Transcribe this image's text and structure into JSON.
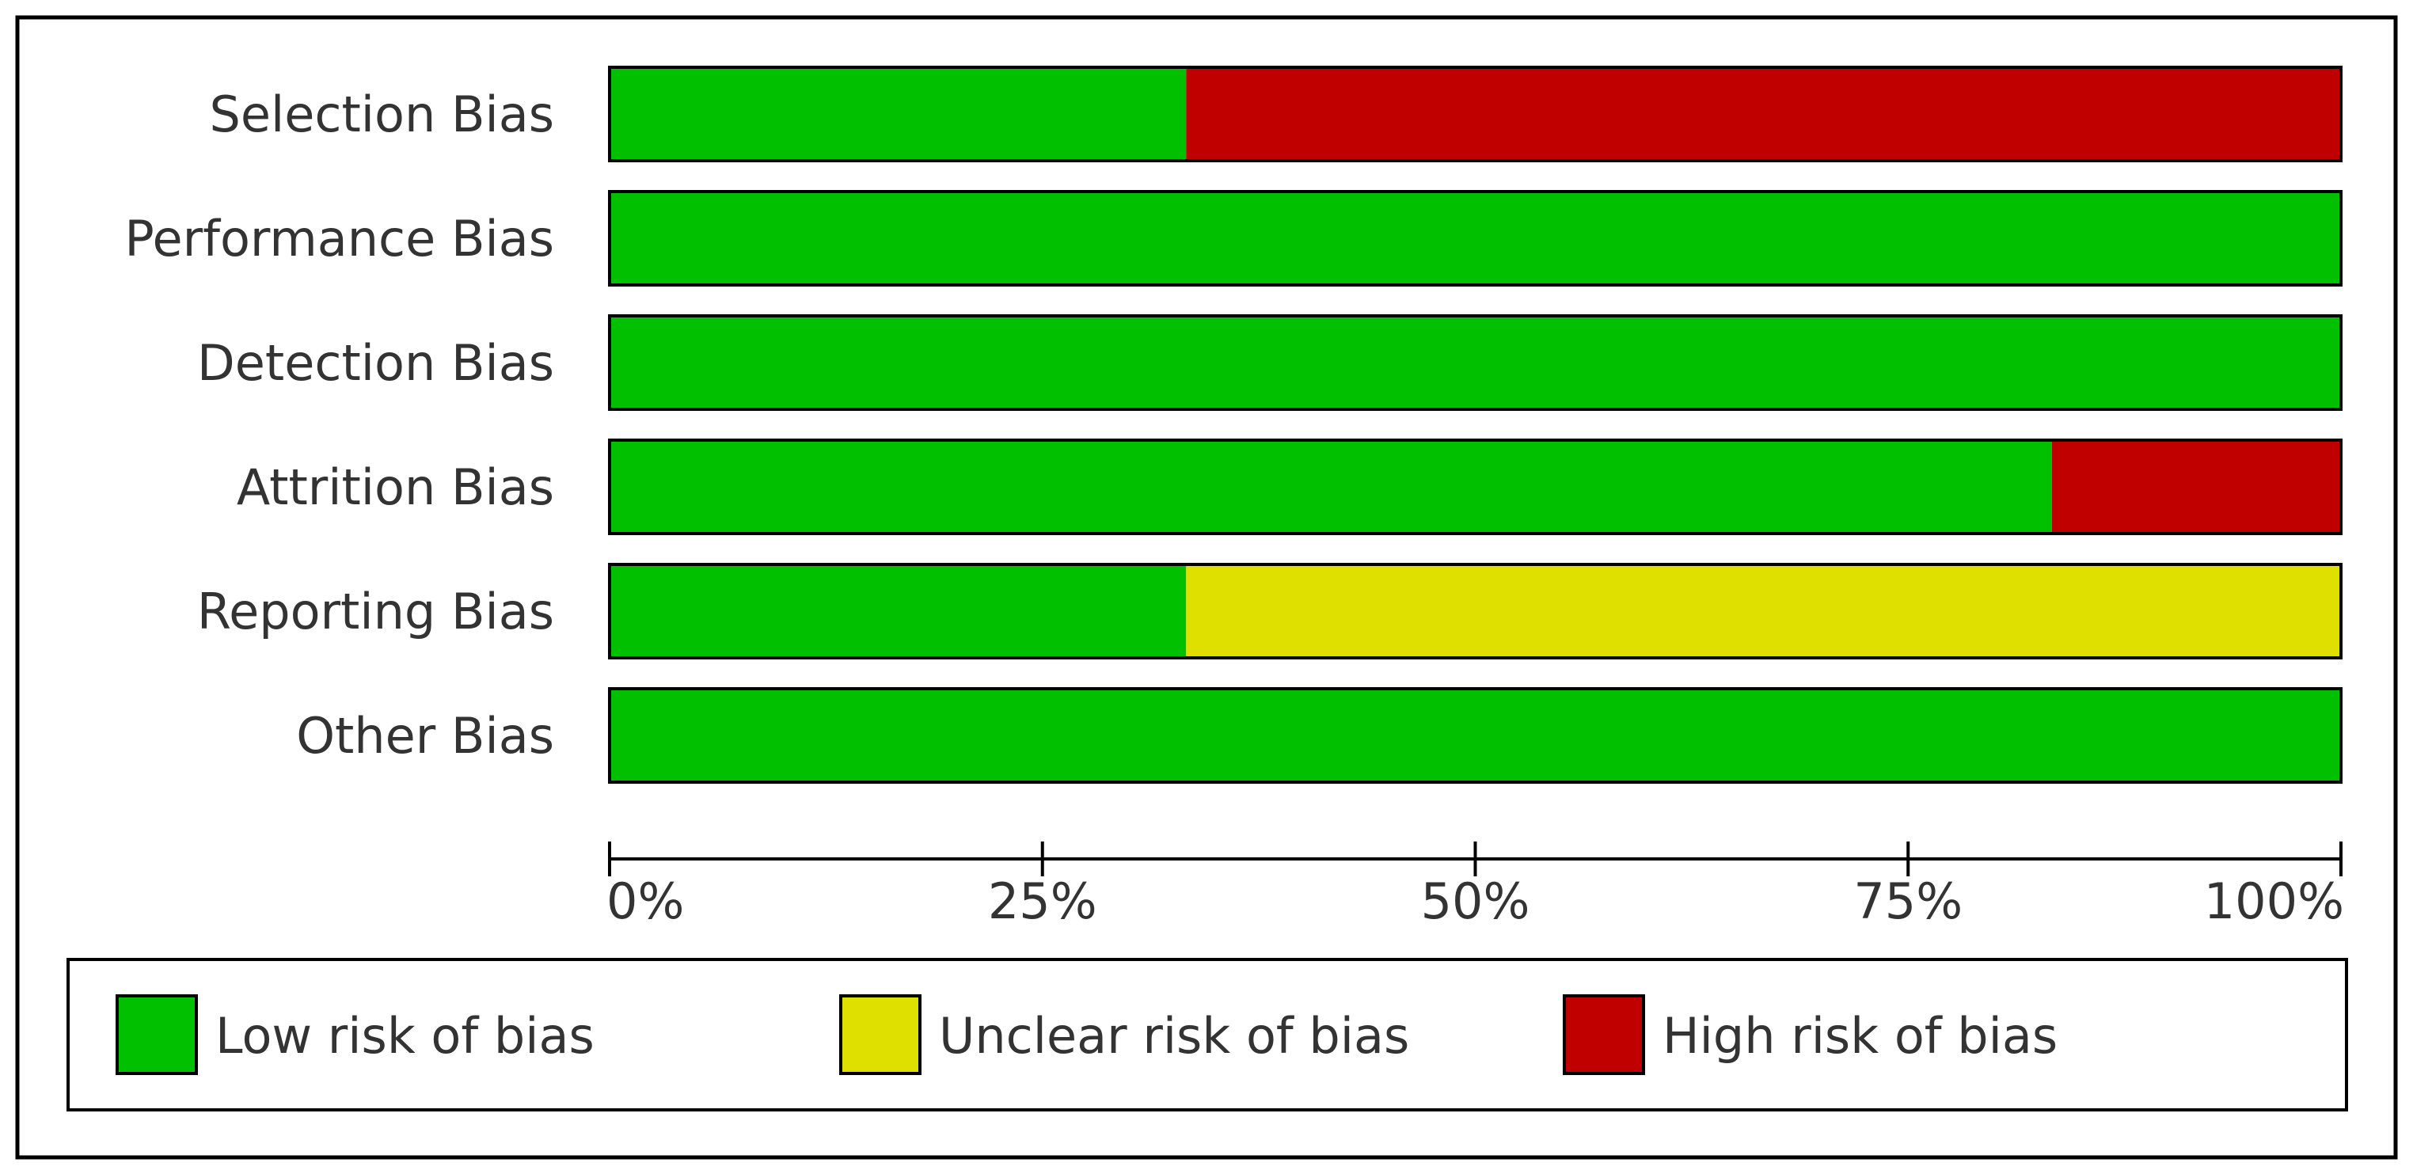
{
  "chart_data": {
    "type": "bar",
    "orientation": "horizontal",
    "stacked": true,
    "categories": [
      "Selection Bias",
      "Performance Bias",
      "Detection Bias",
      "Attrition Bias",
      "Reporting Bias",
      "Other Bias"
    ],
    "series": [
      {
        "name": "Low risk of bias",
        "color": "#00c000",
        "values": [
          33.3,
          100,
          100,
          83.3,
          33.3,
          100
        ]
      },
      {
        "name": "Unclear risk of bias",
        "color": "#e0e000",
        "values": [
          0,
          0,
          0,
          0,
          66.7,
          0
        ]
      },
      {
        "name": "High risk of bias",
        "color": "#c00000",
        "values": [
          66.7,
          0,
          0,
          16.7,
          0,
          0
        ]
      }
    ],
    "xlim": [
      0,
      100
    ],
    "xticks": [
      0,
      25,
      50,
      75,
      100
    ],
    "xtick_labels": [
      "0%",
      "25%",
      "50%",
      "75%",
      "100%"
    ],
    "grid": false,
    "legend_position": "bottom"
  }
}
